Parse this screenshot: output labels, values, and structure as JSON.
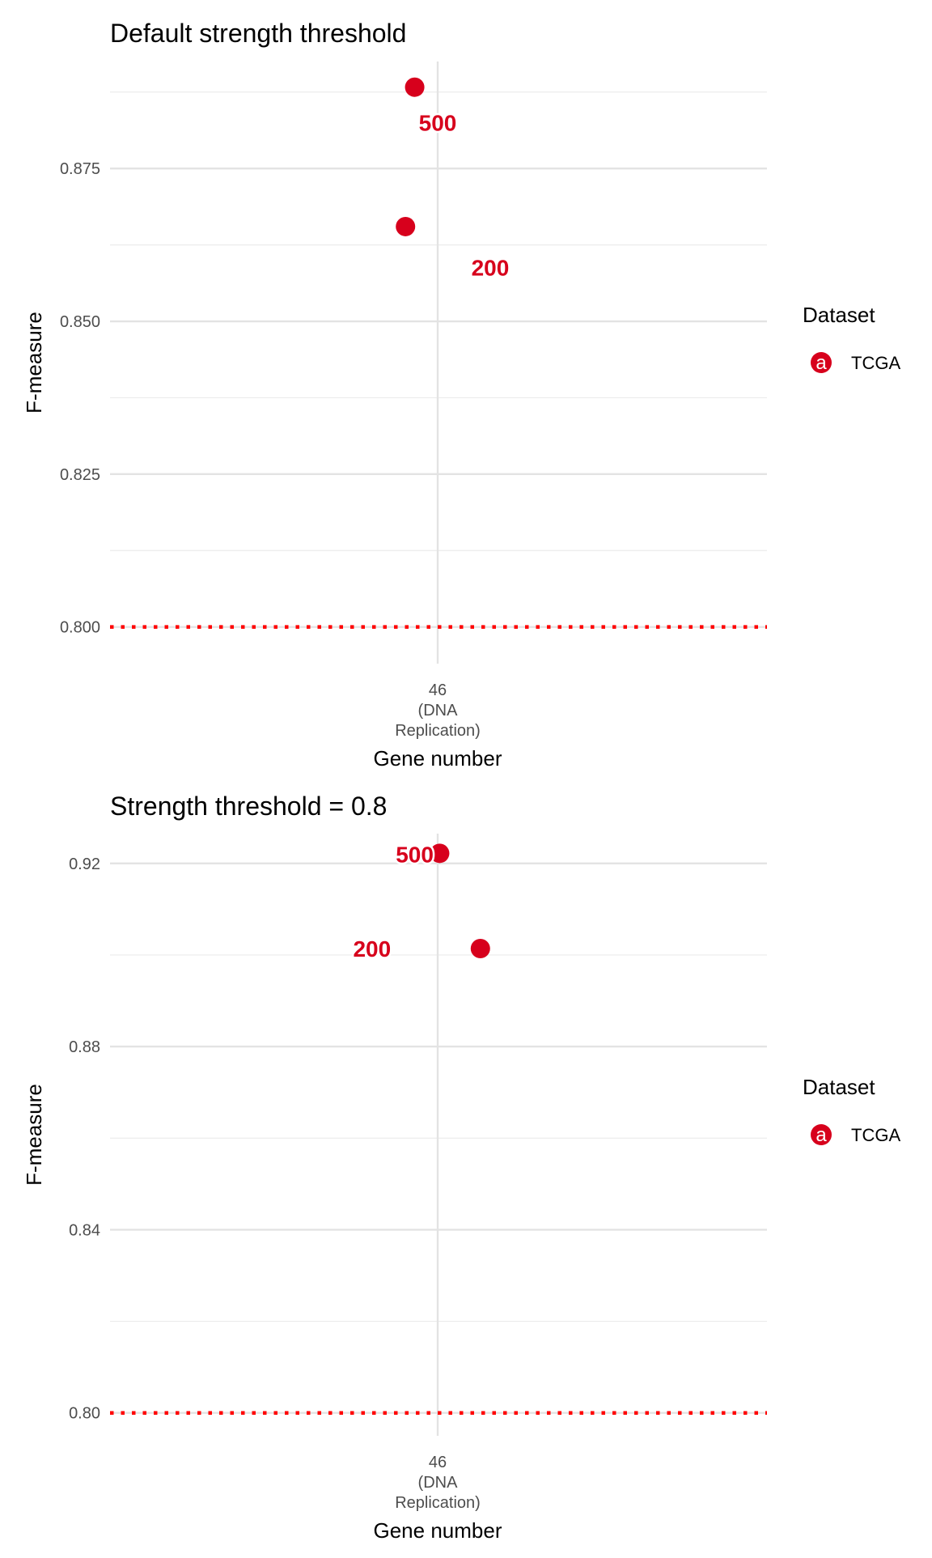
{
  "chart_data": [
    {
      "type": "scatter",
      "title": "Default strength threshold",
      "xlabel": "Gene number",
      "ylabel": "F-measure",
      "categories": [
        "46\n(DNA\nReplication)"
      ],
      "ylim": [
        0.794,
        0.8925
      ],
      "yticks": [
        "0.800",
        "0.825",
        "0.850",
        "0.875"
      ],
      "ytick_values": [
        0.8,
        0.825,
        0.85,
        0.875
      ],
      "minor_gridlines": [
        0.8125,
        0.8375,
        0.8625,
        0.8875
      ],
      "reference_line": 0.8,
      "grid": true,
      "legend": {
        "title": "Dataset",
        "position": "right",
        "entries": [
          "TCGA"
        ],
        "key_glyph": "a"
      },
      "series": [
        {
          "name": "TCGA",
          "color": "#d7001c",
          "points": [
            {
              "x": "46\n(DNA\nReplication)",
              "jitter": -0.035,
              "y": 0.8883,
              "label": "500",
              "label_dx": 0.0,
              "label_dy": -0.0058
            },
            {
              "x": "46\n(DNA\nReplication)",
              "jitter": -0.049,
              "y": 0.8655,
              "label": "200",
              "label_dx": 0.08,
              "label_dy": -0.0067
            }
          ]
        }
      ],
      "reference_color": "#ff0000"
    },
    {
      "type": "scatter",
      "title": "Strength threshold = 0.8",
      "xlabel": "Gene number",
      "ylabel": "F-measure",
      "categories": [
        "46\n(DNA\nReplication)"
      ],
      "ylim": [
        0.795,
        0.9265
      ],
      "yticks": [
        "0.80",
        "0.84",
        "0.88",
        "0.92"
      ],
      "ytick_values": [
        0.8,
        0.84,
        0.88,
        0.92
      ],
      "minor_gridlines": [
        0.82,
        0.86,
        0.9
      ],
      "reference_line": 0.8,
      "grid": true,
      "legend": {
        "title": "Dataset",
        "position": "right",
        "entries": [
          "TCGA"
        ],
        "key_glyph": "a"
      },
      "series": [
        {
          "name": "TCGA",
          "color": "#d7001c",
          "points": [
            {
              "x": "46\n(DNA\nReplication)",
              "jitter": 0.003,
              "y": 0.9222,
              "label": "500",
              "label_dx": -0.035,
              "label_dy": -0.0002
            },
            {
              "x": "46\n(DNA\nReplication)",
              "jitter": 0.065,
              "y": 0.9014,
              "label": "200",
              "label_dx": -0.1,
              "label_dy": 0.0
            }
          ]
        }
      ],
      "reference_color": "#ff0000"
    }
  ]
}
